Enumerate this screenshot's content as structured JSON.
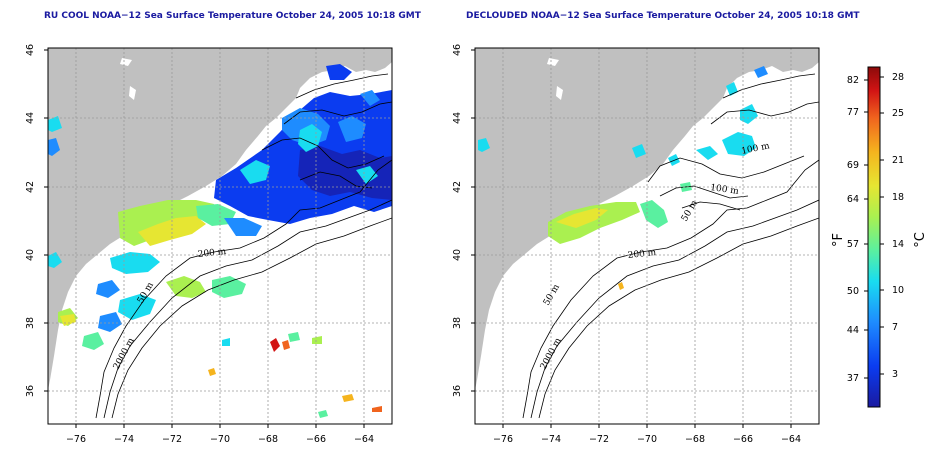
{
  "panels": [
    {
      "title": "RU COOL NOAA−12 Sea Surface Temperature October 24, 2005 10:18 GMT"
    },
    {
      "title": "DECLOUDED NOAA−12 Sea Surface Temperature October 24, 2005 10:18 GMT"
    }
  ],
  "axes": {
    "lon_ticks": [
      "−76",
      "−74",
      "−72",
      "−70",
      "−68",
      "−66",
      "−64"
    ],
    "lat_ticks": [
      "46",
      "44",
      "42",
      "40",
      "38",
      "36"
    ]
  },
  "contour_labels": {
    "left": [
      "200 m",
      "50 m",
      "2000 m"
    ],
    "right": [
      "100 m",
      "100 m",
      "50 m",
      "200 m",
      "50 m",
      "2000 m"
    ]
  },
  "colorbar": {
    "fahrenheit_ticks": [
      "82",
      "77",
      "69",
      "64",
      "57",
      "50",
      "44",
      "37"
    ],
    "celsius_ticks": [
      "28",
      "25",
      "21",
      "18",
      "14",
      "10",
      "7",
      "3"
    ],
    "fahrenheit_unit": "°F",
    "celsius_unit": "°C",
    "colors": [
      "#1a1aa0",
      "#0b3cf0",
      "#1e8cff",
      "#19dcf0",
      "#5af0a0",
      "#aaf050",
      "#e6e632",
      "#f5b41e",
      "#f0641e",
      "#d21414",
      "#8c0a0a"
    ]
  },
  "colors": {
    "land": "#c0c0c0",
    "title": "#1a1aa0",
    "grid": "#9a9a9a"
  }
}
